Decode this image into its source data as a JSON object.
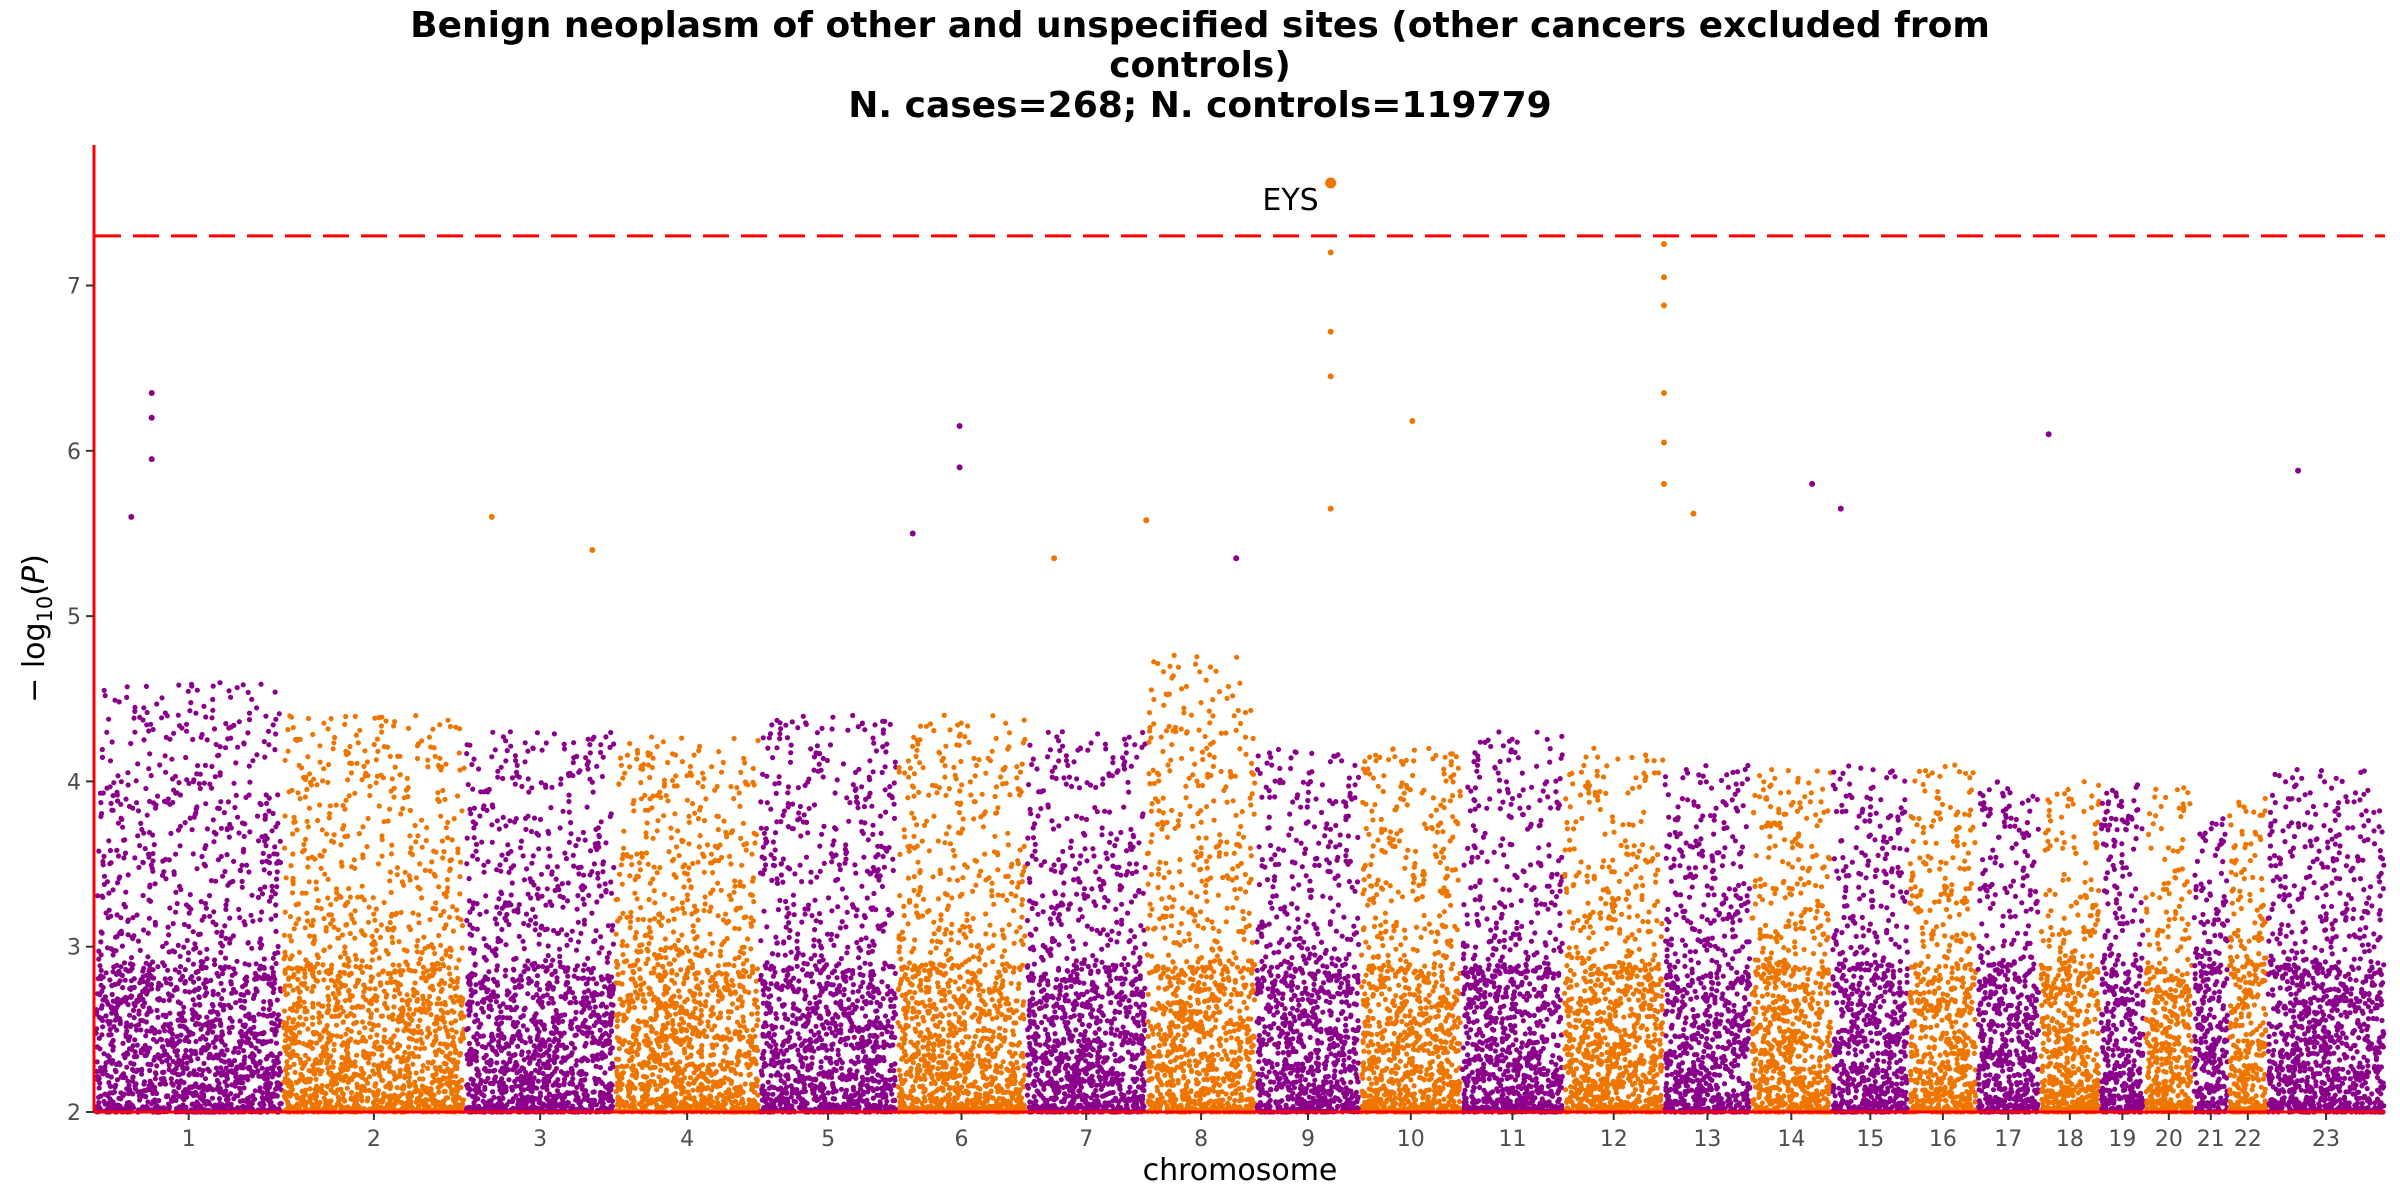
{
  "chart_data": {
    "type": "scatter",
    "subtype": "manhattan",
    "title_lines": [
      "Benign neoplasm of other and unspecified sites (other cancers excluded from",
      "controls)",
      "N. cases=268; N. controls=119779"
    ],
    "xlabel": "chromosome",
    "ylabel": "−log10(P)",
    "ylim": [
      2,
      7.85
    ],
    "yticks": [
      2,
      3,
      4,
      5,
      6,
      7
    ],
    "significance_threshold": 7.3,
    "colors": {
      "odd": "#8B008B",
      "even": "#EE7600",
      "threshold_line": "#FF0000",
      "axis": "#FF0000"
    },
    "chromosomes": [
      {
        "label": "1",
        "start": 0,
        "end": 248,
        "peak": 4.6,
        "color": "purple"
      },
      {
        "label": "2",
        "start": 248,
        "end": 490,
        "peak": 4.4,
        "color": "orange"
      },
      {
        "label": "3",
        "start": 490,
        "end": 688,
        "peak": 4.3,
        "color": "purple"
      },
      {
        "label": "4",
        "start": 688,
        "end": 879,
        "peak": 4.3,
        "color": "orange"
      },
      {
        "label": "5",
        "start": 879,
        "end": 1061,
        "peak": 4.4,
        "color": "purple"
      },
      {
        "label": "6",
        "start": 1061,
        "end": 1232,
        "peak": 4.4,
        "color": "orange"
      },
      {
        "label": "7",
        "start": 1232,
        "end": 1391,
        "peak": 4.3,
        "color": "purple"
      },
      {
        "label": "8",
        "start": 1391,
        "end": 1536,
        "peak": 4.8,
        "color": "orange"
      },
      {
        "label": "9",
        "start": 1536,
        "end": 1674,
        "peak": 4.2,
        "color": "purple"
      },
      {
        "label": "10",
        "start": 1674,
        "end": 1808,
        "peak": 4.2,
        "color": "orange"
      },
      {
        "label": "11",
        "start": 1808,
        "end": 1943,
        "peak": 4.3,
        "color": "purple"
      },
      {
        "label": "12",
        "start": 1943,
        "end": 2076,
        "peak": 4.2,
        "color": "orange"
      },
      {
        "label": "13",
        "start": 2076,
        "end": 2191,
        "peak": 4.1,
        "color": "purple"
      },
      {
        "label": "14",
        "start": 2191,
        "end": 2298,
        "peak": 4.1,
        "color": "orange"
      },
      {
        "label": "15",
        "start": 2298,
        "end": 2400,
        "peak": 4.1,
        "color": "purple"
      },
      {
        "label": "16",
        "start": 2400,
        "end": 2490,
        "peak": 4.1,
        "color": "orange"
      },
      {
        "label": "17",
        "start": 2490,
        "end": 2573,
        "peak": 4.0,
        "color": "purple"
      },
      {
        "label": "18",
        "start": 2573,
        "end": 2653,
        "peak": 4.0,
        "color": "orange"
      },
      {
        "label": "19",
        "start": 2653,
        "end": 2712,
        "peak": 4.0,
        "color": "purple"
      },
      {
        "label": "20",
        "start": 2712,
        "end": 2776,
        "peak": 4.0,
        "color": "orange"
      },
      {
        "label": "21",
        "start": 2776,
        "end": 2823,
        "peak": 3.8,
        "color": "purple"
      },
      {
        "label": "22",
        "start": 2823,
        "end": 2874,
        "peak": 3.9,
        "color": "orange"
      },
      {
        "label": "23",
        "start": 2874,
        "end": 3030,
        "peak": 4.1,
        "color": "purple"
      }
    ],
    "top_hits": [
      {
        "chr": "1",
        "pos": 75,
        "p": 6.35
      },
      {
        "chr": "1",
        "pos": 75,
        "p": 6.2
      },
      {
        "chr": "1",
        "pos": 75,
        "p": 5.95
      },
      {
        "chr": "1",
        "pos": 48,
        "p": 5.6
      },
      {
        "chr": "2",
        "pos": 525,
        "p": 5.6
      },
      {
        "chr": "2",
        "pos": 658,
        "p": 5.4
      },
      {
        "chr": "3",
        "pos": 1144,
        "p": 6.15
      },
      {
        "chr": "3",
        "pos": 1144,
        "p": 5.9
      },
      {
        "chr": "3",
        "pos": 1082,
        "p": 5.5
      },
      {
        "chr": "4",
        "pos": 1269,
        "p": 5.35
      },
      {
        "chr": "4",
        "pos": 1391,
        "p": 5.58
      },
      {
        "chr": "5",
        "pos": 1510,
        "p": 5.35
      },
      {
        "chr": "6",
        "pos": 1635,
        "p": 7.62,
        "label": "EYS"
      },
      {
        "chr": "6",
        "pos": 1635,
        "p": 7.2
      },
      {
        "chr": "6",
        "pos": 1635,
        "p": 6.72
      },
      {
        "chr": "6",
        "pos": 1635,
        "p": 6.45
      },
      {
        "chr": "6",
        "pos": 1635,
        "p": 5.65
      },
      {
        "chr": "6",
        "pos": 1743,
        "p": 6.18
      },
      {
        "chr": "8",
        "pos": 2076,
        "p": 7.25
      },
      {
        "chr": "8",
        "pos": 2076,
        "p": 7.05
      },
      {
        "chr": "8",
        "pos": 2076,
        "p": 6.88
      },
      {
        "chr": "8",
        "pos": 2076,
        "p": 6.35
      },
      {
        "chr": "8",
        "pos": 2076,
        "p": 6.05
      },
      {
        "chr": "8",
        "pos": 2076,
        "p": 5.8
      },
      {
        "chr": "8",
        "pos": 2115,
        "p": 5.62
      },
      {
        "chr": "9",
        "pos": 2272,
        "p": 5.8
      },
      {
        "chr": "9",
        "pos": 2310,
        "p": 5.65
      },
      {
        "chr": "11",
        "pos": 2585,
        "p": 6.1
      },
      {
        "chr": "13",
        "pos": 2915,
        "p": 5.88
      },
      {
        "chr": "14",
        "pos": 3164,
        "p": 5.45
      },
      {
        "chr": "16",
        "pos": 3380,
        "p": 5.6
      },
      {
        "chr": "17",
        "pos": 3421,
        "p": 6.93
      },
      {
        "chr": "17",
        "pos": 3421,
        "p": 6.12
      },
      {
        "chr": "17",
        "pos": 3421,
        "p": 5.98
      },
      {
        "chr": "21",
        "pos": 3834,
        "p": 5.3
      }
    ]
  }
}
